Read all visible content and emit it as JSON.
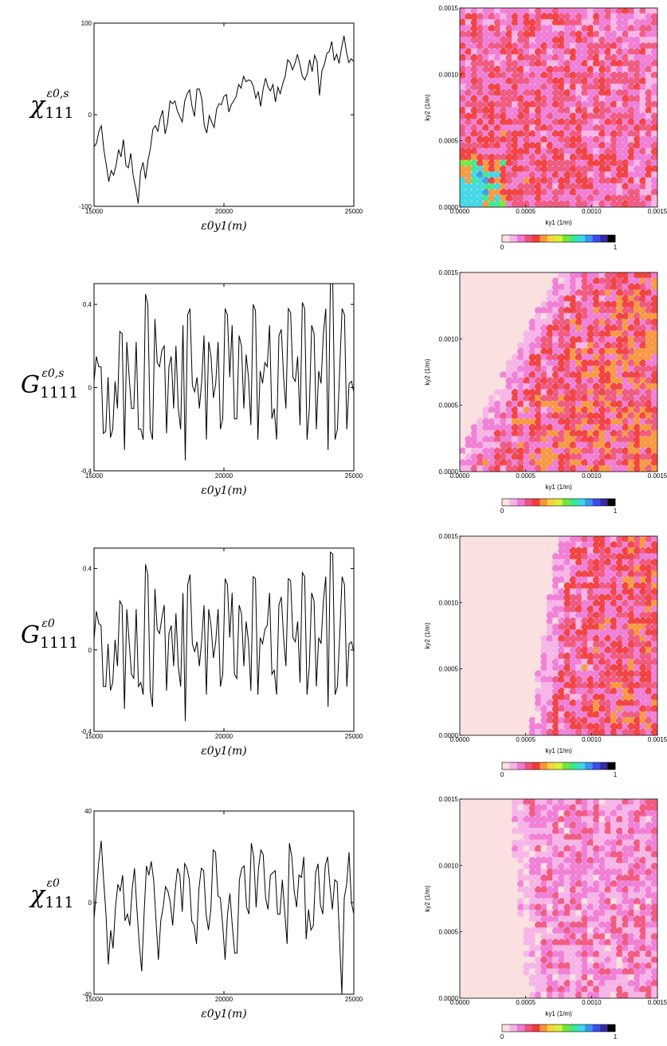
{
  "chart_data": [
    {
      "type": "line",
      "symbol": "χ",
      "subscript": "111",
      "superscript": "ε0,s",
      "xlim": [
        15000,
        25000
      ],
      "ylim": [
        -100,
        100
      ],
      "x_ticks": [
        "15000",
        "20000",
        "25000"
      ],
      "y_ticks": [
        "-100",
        "0",
        "100"
      ],
      "xlabel": "ε0y1(m)",
      "y": [
        -35,
        -31,
        -18,
        -12,
        -38,
        -55,
        -73,
        -61,
        -66,
        -55,
        -38,
        -46,
        -27,
        -55,
        -58,
        -42,
        -67,
        -80,
        -97,
        -62,
        -52,
        -70,
        -50,
        -37,
        -16,
        -12,
        -18,
        -4,
        5,
        -21,
        -9,
        15,
        12,
        15,
        4,
        -2,
        -8,
        15,
        23,
        27,
        9,
        -2,
        28,
        28,
        17,
        -12,
        -20,
        -1,
        -8,
        -14,
        6,
        12,
        11,
        20,
        22,
        3,
        11,
        15,
        20,
        33,
        29,
        42,
        36,
        38,
        37,
        31,
        18,
        25,
        9,
        28,
        40,
        30,
        26,
        33,
        14,
        30,
        23,
        34,
        42,
        60,
        57,
        49,
        56,
        66,
        55,
        42,
        38,
        45,
        60,
        47,
        65,
        58,
        21,
        48,
        55,
        67,
        69,
        80,
        59,
        66,
        56,
        73,
        86,
        68,
        57,
        61,
        58
      ]
    },
    {
      "type": "line",
      "symbol": "G",
      "subscript": "1111",
      "superscript": "ε0,s",
      "xlim": [
        15000,
        25000
      ],
      "ylim": [
        -0.4,
        0.5
      ],
      "x_ticks": [
        "15000",
        "20000",
        "25000"
      ],
      "y_ticks": [
        "-0.4",
        "0",
        "0.4"
      ],
      "xlabel": "ε0y1(m)",
      "y": [
        0.03,
        0.15,
        0.1,
        0.1,
        -0.22,
        -0.21,
        0.05,
        -0.24,
        -0.2,
        0.03,
        -0.1,
        0.27,
        0.26,
        -0.3,
        0.22,
        0.05,
        -0.1,
        -0.1,
        0.22,
        -0.2,
        -0.2,
        -0.25,
        0.45,
        0.4,
        -0.2,
        -0.25,
        0.33,
        0.12,
        0.1,
        0.18,
        0.2,
        -0.22,
        0.1,
        0.15,
        -0.1,
        0.2,
        -0.1,
        -0.2,
        0.3,
        -0.35,
        0.35,
        0.38,
        0.01,
        -0.02,
        0.05,
        -0.1,
        0.03,
        0.25,
        -0.25,
        0.22,
        0.15,
        -0.05,
        0.02,
        0.22,
        -0.2,
        -0.15,
        0.38,
        0.35,
        0.05,
        0.3,
        -0.15,
        -0.15,
        0.25,
        0.2,
        -0.1,
        0.16,
        0.05,
        -0.18,
        0.4,
        0.37,
        -0.25,
        0.08,
        0.02,
        0.12,
        0.1,
        0.3,
        -0.15,
        -0.1,
        -0.25,
        0.25,
        0.28,
        0.05,
        -0.1,
        0.38,
        0.36,
        0.05,
        0.03,
        0.15,
        -0.18,
        0.41,
        0.38,
        -0.25,
        -0.1,
        0.3,
        0.26,
        -0.2,
        0.08,
        0.02,
        0.26,
        0.38,
        -0.3,
        0.5,
        0.5,
        -0.25,
        -0.2,
        0.1,
        0.38,
        0.35,
        -0.2,
        0.02,
        0.03,
        -0.02
      ]
    },
    {
      "type": "line",
      "symbol": "G",
      "subscript": "1111",
      "superscript": "ε0",
      "xlim": [
        15000,
        25000
      ],
      "ylim": [
        -0.4,
        0.5
      ],
      "x_ticks": [
        "15000",
        "20000",
        "25000"
      ],
      "y_ticks": [
        "-0.4",
        "0",
        "0.4"
      ],
      "xlabel": "ε0y1(m)",
      "y": [
        0.05,
        0.19,
        0.13,
        0.12,
        -0.18,
        -0.18,
        0.03,
        -0.2,
        -0.16,
        0.05,
        -0.08,
        0.24,
        0.22,
        -0.29,
        0.2,
        0.04,
        -0.12,
        -0.14,
        0.2,
        -0.18,
        -0.16,
        -0.22,
        0.42,
        0.37,
        -0.2,
        -0.28,
        0.3,
        0.1,
        0.08,
        0.16,
        0.22,
        -0.2,
        0.08,
        0.12,
        -0.08,
        0.18,
        -0.08,
        -0.18,
        0.28,
        -0.35,
        0.32,
        0.37,
        0.03,
        -0.01,
        0.04,
        -0.08,
        0.05,
        0.22,
        -0.22,
        0.2,
        0.12,
        -0.04,
        0.04,
        0.2,
        -0.18,
        -0.12,
        0.35,
        0.32,
        0.06,
        0.28,
        -0.12,
        -0.14,
        0.22,
        0.18,
        -0.08,
        0.14,
        0.04,
        -0.2,
        0.36,
        0.35,
        -0.22,
        0.06,
        0.03,
        0.1,
        0.12,
        0.28,
        -0.12,
        -0.1,
        -0.22,
        0.22,
        0.26,
        0.06,
        -0.08,
        0.35,
        0.34,
        0.06,
        0.04,
        0.14,
        -0.16,
        0.38,
        0.36,
        -0.22,
        -0.08,
        0.28,
        0.24,
        -0.18,
        0.06,
        0.03,
        0.24,
        0.36,
        -0.28,
        0.48,
        0.47,
        -0.22,
        -0.18,
        0.08,
        0.36,
        0.32,
        -0.18,
        0.03,
        0.04,
        -0.01
      ]
    },
    {
      "type": "line",
      "symbol": "χ",
      "subscript": "111",
      "superscript": "ε0",
      "xlim": [
        15000,
        25000
      ],
      "ylim": [
        -40,
        40
      ],
      "x_ticks": [
        "15000",
        "20000",
        "25000"
      ],
      "y_ticks": [
        "-40",
        "0",
        "40"
      ],
      "xlabel": "ε0y1(m)",
      "y": [
        -7,
        5,
        18,
        27,
        10,
        -5,
        -27,
        -12,
        -20,
        -2,
        8,
        5,
        12,
        -8,
        -5,
        -10,
        6,
        15,
        -3,
        -18,
        -30,
        -5,
        16,
        12,
        18,
        10,
        -8,
        -25,
        -8,
        -2,
        7,
        5,
        0,
        -10,
        5,
        15,
        12,
        -4,
        17,
        15,
        10,
        -8,
        -10,
        -18,
        6,
        15,
        14,
        -5,
        -12,
        -3,
        23,
        22,
        3,
        2,
        -10,
        -25,
        -5,
        4,
        -10,
        -22,
        -22,
        10,
        15,
        16,
        -2,
        -5,
        26,
        20,
        -2,
        15,
        23,
        21,
        2,
        -3,
        12,
        13,
        14,
        -5,
        -5,
        10,
        -4,
        -18,
        26,
        20,
        5,
        -2,
        12,
        11,
        20,
        -16,
        -3,
        -12,
        -10,
        13,
        17,
        -1,
        -5,
        16,
        20,
        7,
        -3,
        10,
        9,
        -16,
        -40,
        2,
        8,
        22,
        0,
        -5
      ]
    }
  ],
  "heatmaps": [
    {
      "xlabel": "ky1 (1/m)",
      "ylabel": "ky2 (1/m)",
      "x_ticks": [
        "0.0000",
        "0.0005",
        "0.0010",
        "0.0015"
      ],
      "y_ticks": [
        "0.0000",
        "0.0005",
        "0.0010",
        "0.0015"
      ],
      "colorbar": [
        "0",
        "1"
      ],
      "pattern": "diffuse"
    },
    {
      "xlabel": "ky1 (1/m)",
      "ylabel": "ky2 (1/m)",
      "x_ticks": [
        "0.0000",
        "0.0005",
        "0.0010",
        "0.0015"
      ],
      "y_ticks": [
        "0.0000",
        "0.0005",
        "0.0010",
        "0.0015"
      ],
      "colorbar": [
        "0",
        "1"
      ],
      "pattern": "diagonal"
    },
    {
      "xlabel": "ky1 (1/m)",
      "ylabel": "ky2 (1/m)",
      "x_ticks": [
        "0.0000",
        "0.0005",
        "0.0010",
        "0.0015"
      ],
      "y_ticks": [
        "0.0000",
        "0.0005",
        "0.0010",
        "0.0015"
      ],
      "colorbar": [
        "0",
        "1"
      ],
      "pattern": "vertical"
    },
    {
      "xlabel": "ky1 (1/m)",
      "ylabel": "ky2 (1/m)",
      "x_ticks": [
        "0.0000",
        "0.0005",
        "0.0010",
        "0.0015"
      ],
      "y_ticks": [
        "0.0000",
        "0.0005",
        "0.0010",
        "0.0015"
      ],
      "colorbar": [
        "0",
        "1"
      ],
      "pattern": "vertical-faint"
    }
  ],
  "colors": {
    "line": "#000000",
    "heat_bg": "#fbe0e0",
    "colorbar": [
      "#fbe0e0",
      "#f6b2e8",
      "#f07ad6",
      "#f0527c",
      "#f23a3a",
      "#f8963a",
      "#fad23a",
      "#d8f23a",
      "#72e83a",
      "#3ae88c",
      "#3ad8e8",
      "#3a96f0",
      "#3a4cf0",
      "#3a2aa0",
      "#000000"
    ]
  }
}
